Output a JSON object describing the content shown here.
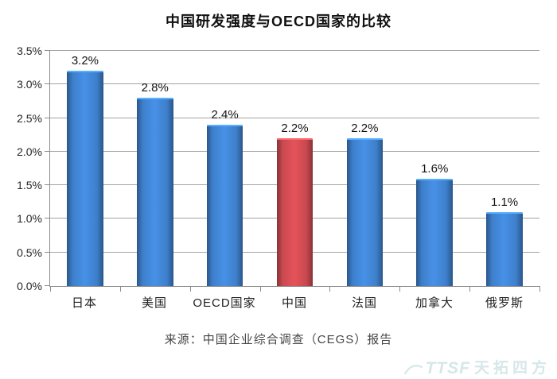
{
  "page": {
    "source_note": "来源：中国企业综合调查（CEGS）报告",
    "watermark": {
      "logo_text": "TTSF",
      "brand_text": "天拓四方",
      "color": "#d6e7e9"
    }
  },
  "chart_data": {
    "type": "bar",
    "title": "中国研发强度与OECD国家的比较",
    "categories": [
      "日本",
      "美国",
      "OECD国家",
      "中国",
      "法国",
      "加拿大",
      "俄罗斯"
    ],
    "values": [
      3.2,
      2.8,
      2.4,
      2.2,
      2.2,
      1.6,
      1.1
    ],
    "data_labels": [
      "3.2%",
      "2.8%",
      "2.4%",
      "2.2%",
      "2.2%",
      "1.6%",
      "1.1%"
    ],
    "bar_colors": [
      "#3e7fcb",
      "#3e7fcb",
      "#3e7fcb",
      "#c9494f",
      "#3e7fcb",
      "#3e7fcb",
      "#3e7fcb"
    ],
    "highlight_category": "中国",
    "xlabel": "",
    "ylabel": "",
    "ylim": [
      0,
      3.5
    ],
    "y_ticks": [
      "0.0%",
      "0.5%",
      "1.0%",
      "1.5%",
      "2.0%",
      "2.5%",
      "3.0%",
      "3.5%"
    ],
    "grid": "horizontal-gridlines",
    "legend_position": "none",
    "colors": {
      "grid_line": "#a3a3a3",
      "axis_line": "#8c8c8c",
      "bar_blue": "#3e7fcb",
      "bar_red": "#c9494f"
    }
  }
}
